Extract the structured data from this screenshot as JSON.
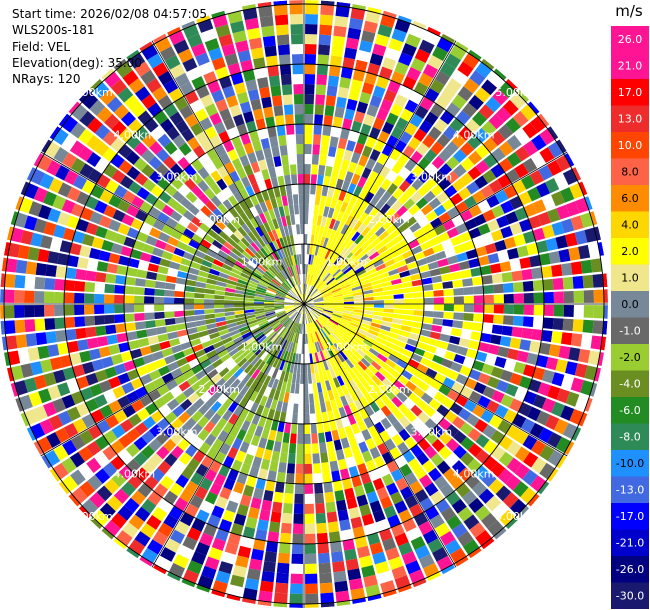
{
  "header": {
    "start_time": "Start time: 2026/02/08 04:57:05",
    "instrument": "WLS200s-181",
    "field": "Field: VEL",
    "elevation": "Elevation(deg): 35.00",
    "nrays": "NRays: 120"
  },
  "chart_data": {
    "type": "heatmap",
    "projection": "polar-ppi",
    "range_rings_km": [
      1,
      2,
      3,
      4,
      5
    ],
    "range_ring_labels": [
      "1.00km",
      "2.00km",
      "3.00km",
      "4.00km",
      "5.00km"
    ],
    "spoke_step_deg": 30,
    "colorbar": {
      "unit": "m/s",
      "ticks": [
        "26.0",
        "21.0",
        "17.0",
        "13.0",
        "10.0",
        "8.0",
        "6.0",
        "4.0",
        "2.0",
        "1.0",
        "0.0",
        "-1.0",
        "-2.0",
        "-4.0",
        "-6.0",
        "-8.0",
        "-10.0",
        "-13.0",
        "-17.0",
        "-21.0",
        "-26.0",
        "-30.0"
      ],
      "colors": [
        "#ff1493",
        "#ff1493",
        "#ff0000",
        "#ee2c2c",
        "#ff4500",
        "#ff6347",
        "#ff8c00",
        "#ffd700",
        "#ffff00",
        "#f0e68c",
        "#778899",
        "#696969",
        "#9acd32",
        "#6b8e23",
        "#228b22",
        "#2e8b57",
        "#1e90ff",
        "#4169e1",
        "#0000ff",
        "#0000cd",
        "#000080",
        "#191970"
      ]
    }
  }
}
